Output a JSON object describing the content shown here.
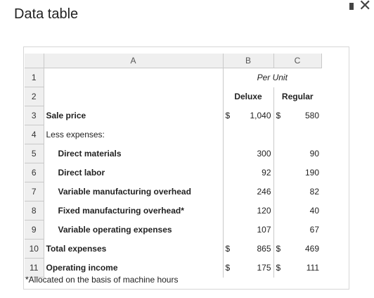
{
  "window": {
    "title": "Data table"
  },
  "columns": [
    "",
    "A",
    "B",
    "C"
  ],
  "header_rows": [
    {
      "num": "1",
      "center_label": "Per Unit"
    },
    {
      "num": "2",
      "b_label": "Deluxe",
      "c_label": "Regular"
    }
  ],
  "rows": [
    {
      "num": "3",
      "label": "Sale price",
      "b_sym": "$",
      "b_val": "1,040",
      "c_sym": "$",
      "c_val": "580"
    },
    {
      "num": "4",
      "label": "Less expenses:",
      "b_sym": "",
      "b_val": "",
      "c_sym": "",
      "c_val": ""
    },
    {
      "num": "5",
      "label": "Direct materials",
      "b_sym": "",
      "b_val": "300",
      "c_sym": "",
      "c_val": "90"
    },
    {
      "num": "6",
      "label": "Direct labor",
      "b_sym": "",
      "b_val": "92",
      "c_sym": "",
      "c_val": "190"
    },
    {
      "num": "7",
      "label": "Variable manufacturing overhead",
      "b_sym": "",
      "b_val": "246",
      "c_sym": "",
      "c_val": "82"
    },
    {
      "num": "8",
      "label": "Fixed manufacturing overhead*",
      "b_sym": "",
      "b_val": "120",
      "c_sym": "",
      "c_val": "40"
    },
    {
      "num": "9",
      "label": "Variable operating expenses",
      "b_sym": "",
      "b_val": "107",
      "c_sym": "",
      "c_val": "67"
    },
    {
      "num": "10",
      "label": "Total expenses",
      "b_sym": "$",
      "b_val": "865",
      "c_sym": "$",
      "c_val": "469"
    },
    {
      "num": "11",
      "label": "Operating income",
      "b_sym": "$",
      "b_val": "175",
      "c_sym": "$",
      "c_val": "111"
    }
  ],
  "footnote": "*Allocated on the basis of machine hours"
}
